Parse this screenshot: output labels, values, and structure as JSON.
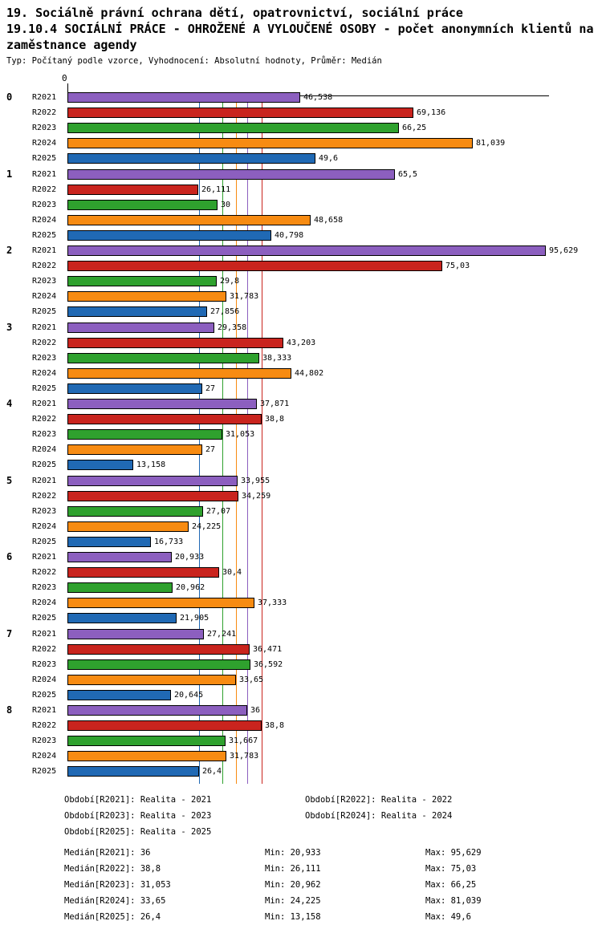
{
  "header": {
    "title1": "19. Sociálně právní ochrana dětí, opatrovnictví, sociální práce",
    "title2": "19.10.4 SOCIÁLNÍ PRÁCE - OHROŽENÉ A VYLOUČENÉ OSOBY - počet anonymních klientů na zaměstnance agendy",
    "subtitle": "Typ: Počítaný podle vzorce, Vyhodnocení: Absolutní hodnoty, Průměr: Medián"
  },
  "chart_data": {
    "type": "bar",
    "orientation": "horizontal",
    "title": "19.10.4 SOCIÁLNÍ PRÁCE - OHROŽENÉ A VYLOUČENÉ OSOBY - počet anonymních klientů na zaměstnance agendy",
    "xlabel": "",
    "ylabel": "",
    "grid": false,
    "legend_position": "bottom",
    "x_axis": {
      "min": 0,
      "max": 96.3,
      "tick_labels": [
        "0"
      ]
    },
    "categories": [
      "0",
      "1",
      "2",
      "3",
      "4",
      "5",
      "6",
      "7",
      "8"
    ],
    "series": [
      {
        "name": "R2021",
        "color": "#8c5fbf",
        "values": [
          46.538,
          65.5,
          95.629,
          29.358,
          37.871,
          33.955,
          20.933,
          27.241,
          36
        ],
        "value_labels": [
          "46,538",
          "65,5",
          "95,629",
          "29,358",
          "37,871",
          "33,955",
          "20,933",
          "27,241",
          "36"
        ],
        "median": 36,
        "median_label": "36"
      },
      {
        "name": "R2022",
        "color": "#c9241e",
        "values": [
          69.136,
          26.111,
          75.03,
          43.203,
          38.8,
          34.259,
          30.4,
          36.471,
          38.8
        ],
        "value_labels": [
          "69,136",
          "26,111",
          "75,03",
          "43,203",
          "38,8",
          "34,259",
          "30,4",
          "36,471",
          "38,8"
        ],
        "median": 38.8,
        "median_label": "38,8"
      },
      {
        "name": "R2023",
        "color": "#2fa12e",
        "values": [
          66.25,
          30,
          29.8,
          38.333,
          31.053,
          27.07,
          20.962,
          36.592,
          31.667
        ],
        "value_labels": [
          "66,25",
          "30",
          "29,8",
          "38,333",
          "31,053",
          "27,07",
          "20,962",
          "36,592",
          "31,667"
        ],
        "median": 31.053,
        "median_label": "31,053"
      },
      {
        "name": "R2024",
        "color": "#f78b12",
        "values": [
          81.039,
          48.658,
          31.783,
          44.802,
          27,
          24.225,
          37.333,
          33.65,
          31.783
        ],
        "value_labels": [
          "81,039",
          "48,658",
          "31,783",
          "44,802",
          "27",
          "24,225",
          "37,333",
          "33,65",
          "31,783"
        ],
        "median": 33.65,
        "median_label": "33,65"
      },
      {
        "name": "R2025",
        "color": "#2069b4",
        "values": [
          49.6,
          40.798,
          27.856,
          27,
          13.158,
          16.733,
          21.905,
          20.645,
          26.4
        ],
        "value_labels": [
          "49,6",
          "40,798",
          "27,856",
          "27",
          "13,158",
          "16,733",
          "21,905",
          "20,645",
          "26,4"
        ],
        "median": 26.4,
        "median_label": "26,4"
      }
    ]
  },
  "legend": {
    "rows": [
      {
        "left": "Období[R2021]: Realita - 2021",
        "right": "Období[R2022]: Realita - 2022"
      },
      {
        "left": "Období[R2023]: Realita - 2023",
        "right": "Období[R2024]: Realita - 2024"
      },
      {
        "left": "Období[R2025]: Realita - 2025",
        "right": ""
      }
    ]
  },
  "stats": {
    "rows": [
      {
        "median": "Medián[R2021]: 36",
        "min": "Min: 20,933",
        "max": "Max: 95,629"
      },
      {
        "median": "Medián[R2022]: 38,8",
        "min": "Min: 26,111",
        "max": "Max: 75,03"
      },
      {
        "median": "Medián[R2023]: 31,053",
        "min": "Min: 20,962",
        "max": "Max: 66,25"
      },
      {
        "median": "Medián[R2024]: 33,65",
        "min": "Min: 24,225",
        "max": "Max: 81,039"
      },
      {
        "median": "Medián[R2025]: 26,4",
        "min": "Min: 13,158",
        "max": "Max: 49,6"
      }
    ]
  }
}
